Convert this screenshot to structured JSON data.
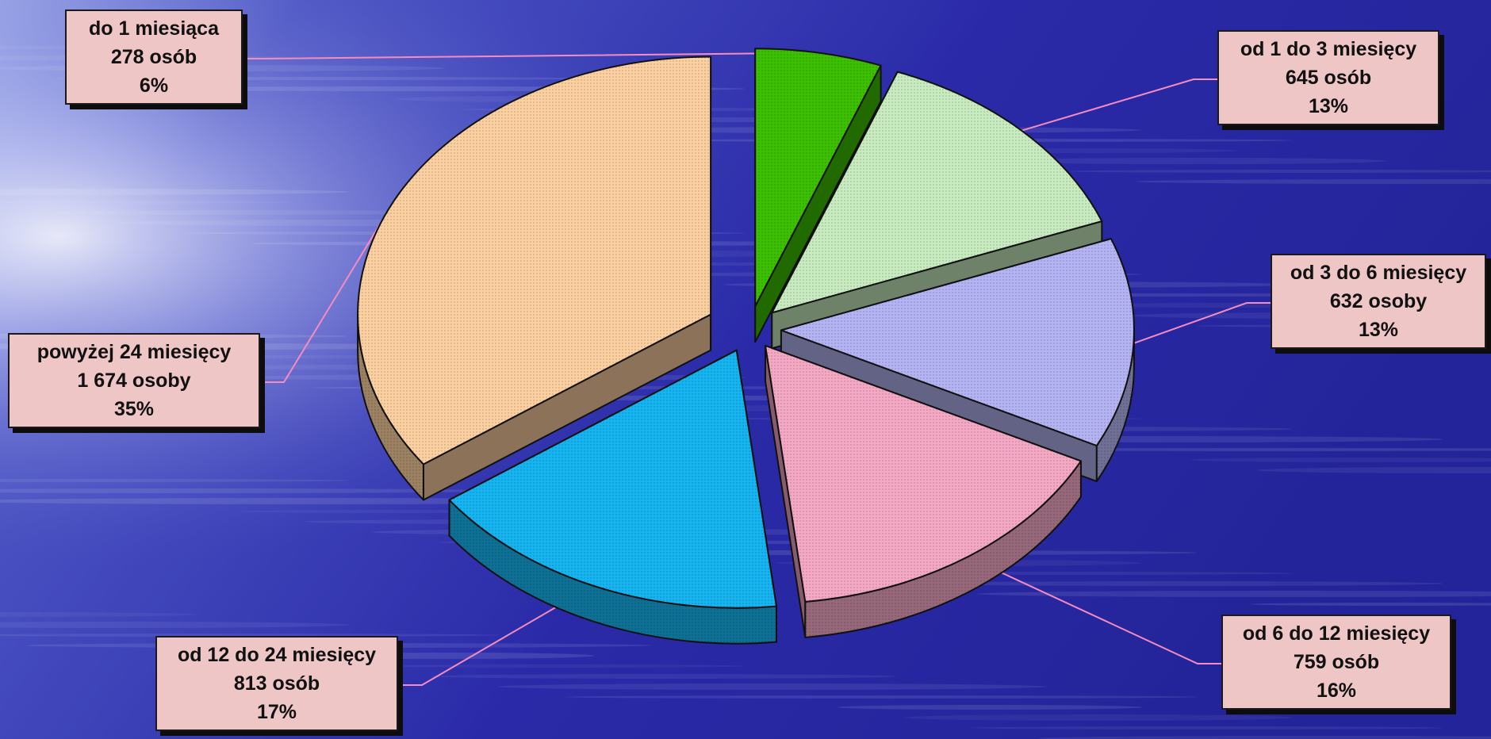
{
  "chart_data": {
    "type": "pie",
    "title": "",
    "categories": [
      "do 1 miesiąca",
      "od 1 do 3 miesięcy",
      "od 3 do 6 miesięcy",
      "od 6 do 12 miesięcy",
      "od 12 do 24 miesięcy",
      "powyżej 24 miesięcy"
    ],
    "values": [
      278,
      645,
      632,
      759,
      813,
      1674
    ],
    "count_labels": [
      "278 osób",
      "645 osób",
      "632 osoby",
      "759 osób",
      "813 osób",
      "1 674 osoby"
    ],
    "percent_labels": [
      "6%",
      "13%",
      "13%",
      "16%",
      "17%",
      "35%"
    ],
    "colors": [
      "#3cc000",
      "#c8ecc0",
      "#b4b4f4",
      "#f4a8c4",
      "#16b4f0",
      "#fcd0a0"
    ],
    "style": "3d-exploded",
    "legend": "none"
  }
}
